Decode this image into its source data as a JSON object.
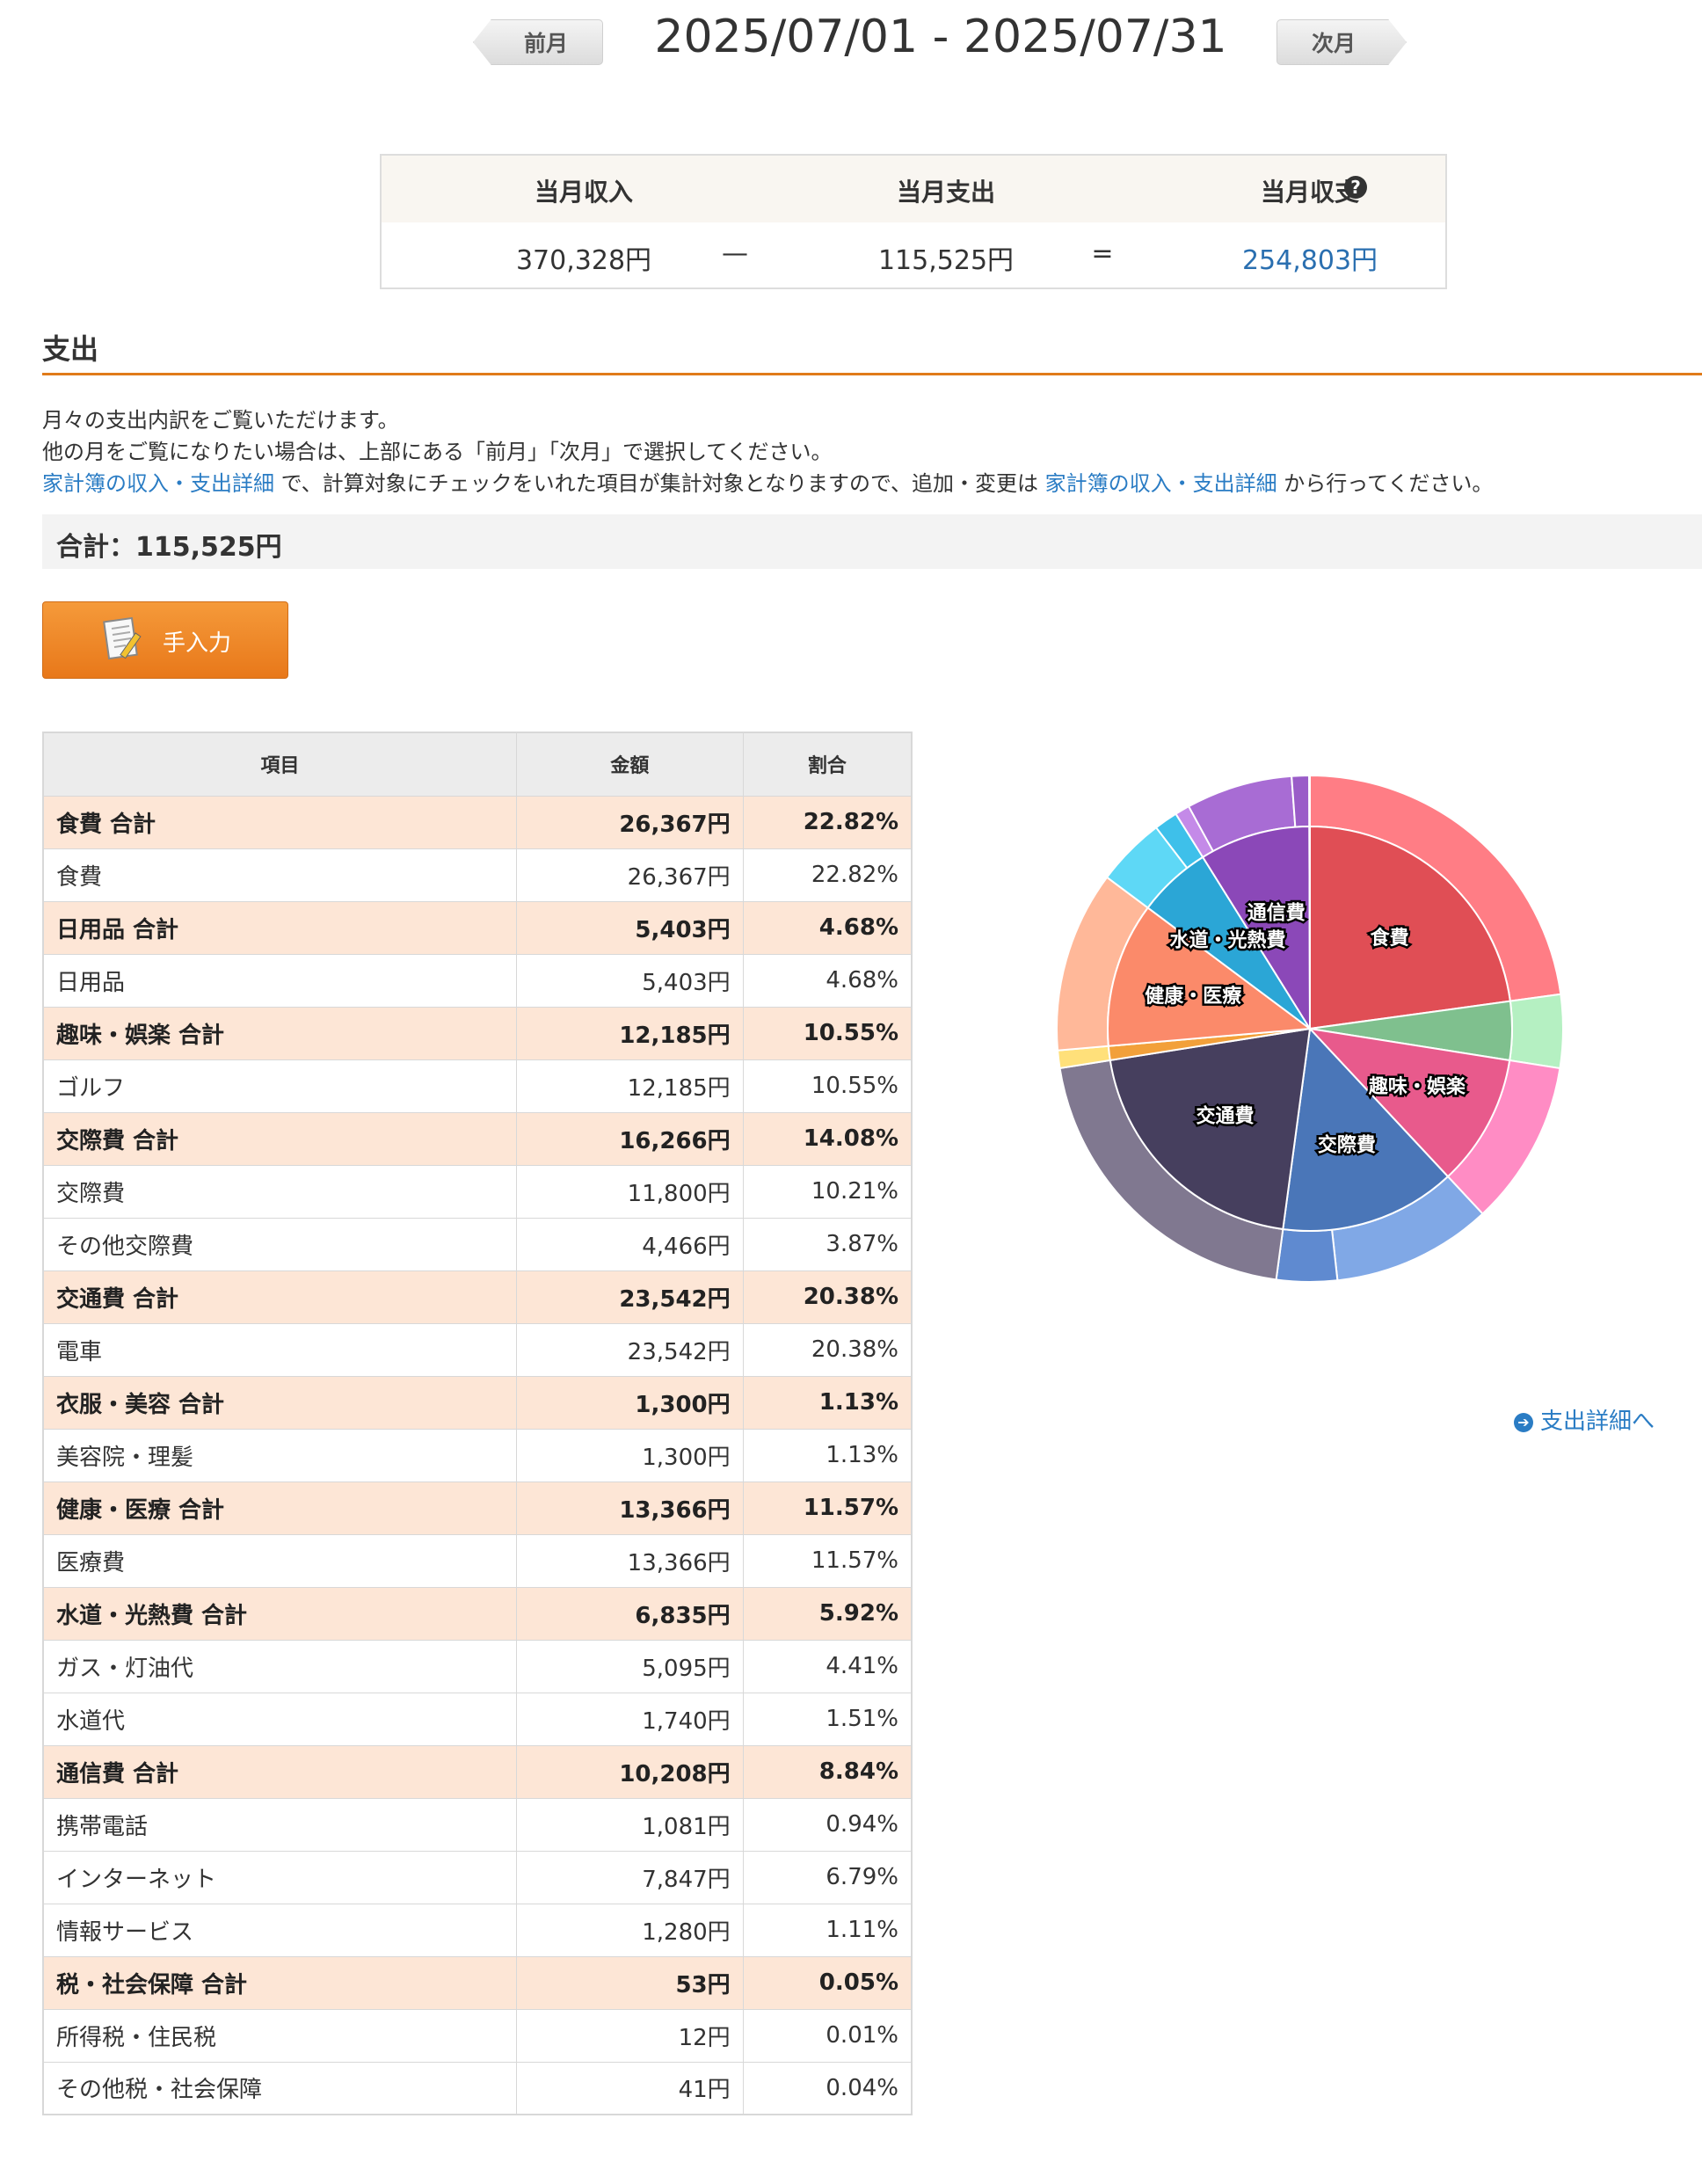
{
  "nav": {
    "prev_label": "前月",
    "next_label": "次月",
    "period": "2025/07/01 - 2025/07/31"
  },
  "summary": {
    "income_label": "当月収入",
    "expense_label": "当月支出",
    "balance_label": "当月収支",
    "income": "370,328円",
    "minus": "—",
    "expense": "115,525円",
    "equals": "=",
    "balance": "254,803円",
    "help_icon": "question-circle-icon",
    "balance_color": "#2a6fb0"
  },
  "section": {
    "title": "支出",
    "desc1": "月々の支出内訳をご覧いただけます。",
    "desc2": "他の月をご覧になりたい場合は、上部にある「前月」「次月」で選択してください。",
    "desc3_link1": "家計簿の収入・支出詳細",
    "desc3_mid": "で、計算対象にチェックをいれた項目が集計対象となりますので、追加・変更は",
    "desc3_link2": "家計簿の収入・支出詳細",
    "desc3_end": "から行ってください。",
    "total": "合計：115,525円",
    "accent_color": "#e07b1a"
  },
  "manual_button": {
    "label": "手入力",
    "icon": "memo-pencil-icon"
  },
  "table": {
    "headers": [
      "項目",
      "金額",
      "割合"
    ],
    "rows": [
      {
        "type": "grp",
        "name": "食費 合計",
        "amount": "26,367円",
        "pct": "22.82%"
      },
      {
        "type": "itm",
        "name": "食費",
        "amount": "26,367円",
        "pct": "22.82%"
      },
      {
        "type": "grp",
        "name": "日用品 合計",
        "amount": "5,403円",
        "pct": "4.68%"
      },
      {
        "type": "itm",
        "name": "日用品",
        "amount": "5,403円",
        "pct": "4.68%"
      },
      {
        "type": "grp",
        "name": "趣味・娯楽 合計",
        "amount": "12,185円",
        "pct": "10.55%"
      },
      {
        "type": "itm",
        "name": "ゴルフ",
        "amount": "12,185円",
        "pct": "10.55%"
      },
      {
        "type": "grp",
        "name": "交際費 合計",
        "amount": "16,266円",
        "pct": "14.08%"
      },
      {
        "type": "itm",
        "name": "交際費",
        "amount": "11,800円",
        "pct": "10.21%"
      },
      {
        "type": "itm",
        "name": "その他交際費",
        "amount": "4,466円",
        "pct": "3.87%"
      },
      {
        "type": "grp",
        "name": "交通費 合計",
        "amount": "23,542円",
        "pct": "20.38%"
      },
      {
        "type": "itm",
        "name": "電車",
        "amount": "23,542円",
        "pct": "20.38%"
      },
      {
        "type": "grp",
        "name": "衣服・美容 合計",
        "amount": "1,300円",
        "pct": "1.13%"
      },
      {
        "type": "itm",
        "name": "美容院・理髪",
        "amount": "1,300円",
        "pct": "1.13%"
      },
      {
        "type": "grp",
        "name": "健康・医療 合計",
        "amount": "13,366円",
        "pct": "11.57%"
      },
      {
        "type": "itm",
        "name": "医療費",
        "amount": "13,366円",
        "pct": "11.57%"
      },
      {
        "type": "grp",
        "name": "水道・光熱費 合計",
        "amount": "6,835円",
        "pct": "5.92%"
      },
      {
        "type": "itm",
        "name": "ガス・灯油代",
        "amount": "5,095円",
        "pct": "4.41%"
      },
      {
        "type": "itm",
        "name": "水道代",
        "amount": "1,740円",
        "pct": "1.51%"
      },
      {
        "type": "grp",
        "name": "通信費 合計",
        "amount": "10,208円",
        "pct": "8.84%"
      },
      {
        "type": "itm",
        "name": "携帯電話",
        "amount": "1,081円",
        "pct": "0.94%"
      },
      {
        "type": "itm",
        "name": "インターネット",
        "amount": "7,847円",
        "pct": "6.79%"
      },
      {
        "type": "itm",
        "name": "情報サービス",
        "amount": "1,280円",
        "pct": "1.11%"
      },
      {
        "type": "grp",
        "name": "税・社会保障 合計",
        "amount": "53円",
        "pct": "0.05%"
      },
      {
        "type": "itm",
        "name": "所得税・住民税",
        "amount": "12円",
        "pct": "0.01%"
      },
      {
        "type": "itm",
        "name": "その他税・社会保障",
        "amount": "41円",
        "pct": "0.04%"
      }
    ]
  },
  "detail_link": {
    "label": "支出詳細へ",
    "icon": "arrow-circle-right-icon"
  },
  "chart_data": {
    "type": "pie",
    "inner": [
      {
        "name": "食費",
        "value": 26367,
        "color": "#e04e55",
        "label": "食費"
      },
      {
        "name": "日用品",
        "value": 5403,
        "color": "#7fc08e",
        "label": ""
      },
      {
        "name": "趣味・娯楽",
        "value": 12185,
        "color": "#e85a8c",
        "label": "趣味・娯楽"
      },
      {
        "name": "交際費",
        "value": 16266,
        "color": "#4a76b8",
        "label": "交際費"
      },
      {
        "name": "交通費",
        "value": 23542,
        "color": "#463f5e",
        "label": "交通費"
      },
      {
        "name": "衣服・美容",
        "value": 1300,
        "color": "#f2a03a",
        "label": ""
      },
      {
        "name": "健康・医療",
        "value": 13366,
        "color": "#fb8a6a",
        "label": "健康・医療"
      },
      {
        "name": "水道・光熱費",
        "value": 6835,
        "color": "#2ba6d6",
        "label": "水道・光熱費"
      },
      {
        "name": "通信費",
        "value": 10208,
        "color": "#8b48b8",
        "label": "通信費"
      },
      {
        "name": "税・社会保障",
        "value": 53,
        "color": "#6c6c6c",
        "label": ""
      }
    ],
    "outer": [
      {
        "name": "食費",
        "value": 26367,
        "color": "#ff7d85"
      },
      {
        "name": "日用品",
        "value": 5403,
        "color": "#b5f0c2"
      },
      {
        "name": "ゴルフ",
        "value": 12185,
        "color": "#ff8cc4"
      },
      {
        "name": "交際費",
        "value": 11800,
        "color": "#80a8e6"
      },
      {
        "name": "その他交際費",
        "value": 4466,
        "color": "#5f8ad0"
      },
      {
        "name": "電車",
        "value": 23542,
        "color": "#807890"
      },
      {
        "name": "美容院・理髪",
        "value": 1300,
        "color": "#ffe07a"
      },
      {
        "name": "医療費",
        "value": 13366,
        "color": "#ffb899"
      },
      {
        "name": "ガス・灯油代",
        "value": 5095,
        "color": "#5ed8f6"
      },
      {
        "name": "水道代",
        "value": 1740,
        "color": "#3ec0ea"
      },
      {
        "name": "携帯電話",
        "value": 1081,
        "color": "#c48ae8"
      },
      {
        "name": "インターネット",
        "value": 7847,
        "color": "#a86cd4"
      },
      {
        "name": "情報サービス",
        "value": 1280,
        "color": "#9a5cc8"
      },
      {
        "name": "所得税・住民税",
        "value": 12,
        "color": "#888888"
      },
      {
        "name": "その他税・社会保障",
        "value": 41,
        "color": "#888888"
      }
    ]
  }
}
